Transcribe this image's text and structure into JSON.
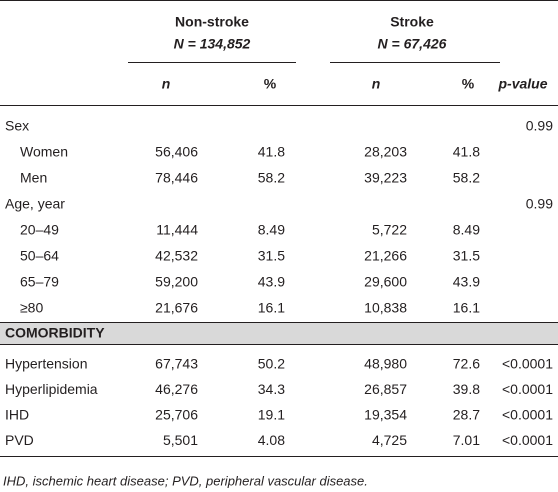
{
  "table": {
    "groups": [
      {
        "name": "Non-stroke",
        "n": "N = 134,852"
      },
      {
        "name": "Stroke",
        "n": "N = 67,426"
      }
    ],
    "subheaders": [
      "n",
      "%",
      "n",
      "%",
      "p-value"
    ],
    "blocks": [
      {
        "title": "Sex",
        "p_value": "0.99",
        "rows": [
          [
            "Women",
            "56,406",
            "41.8",
            "28,203",
            "41.8"
          ],
          [
            "Men",
            "78,446",
            "58.2",
            "39,223",
            "58.2"
          ]
        ]
      },
      {
        "title": "Age, year",
        "p_value": "0.99",
        "rows": [
          [
            "20–49",
            "11,444",
            "8.49",
            "5,722",
            "8.49"
          ],
          [
            "50–64",
            "42,532",
            "31.5",
            "21,266",
            "31.5"
          ],
          [
            "65–79",
            "59,200",
            "43.9",
            "29,600",
            "43.9"
          ],
          [
            "≥80",
            "21,676",
            "16.1",
            "10,838",
            "16.1"
          ]
        ]
      }
    ],
    "band": "COMORBIDITY",
    "comorbidity_rows": [
      [
        "Hypertension",
        "67,743",
        "50.2",
        "48,980",
        "72.6",
        "<0.0001"
      ],
      [
        "Hyperlipidemia",
        "46,276",
        "34.3",
        "26,857",
        "39.8",
        "<0.0001"
      ],
      [
        "IHD",
        "25,706",
        "19.1",
        "19,354",
        "28.7",
        "<0.0001"
      ],
      [
        "PVD",
        "5,501",
        "4.08",
        "4,725",
        "7.01",
        "<0.0001"
      ]
    ],
    "footnote": "IHD, ischemic heart disease; PVD, peripheral vascular disease."
  }
}
